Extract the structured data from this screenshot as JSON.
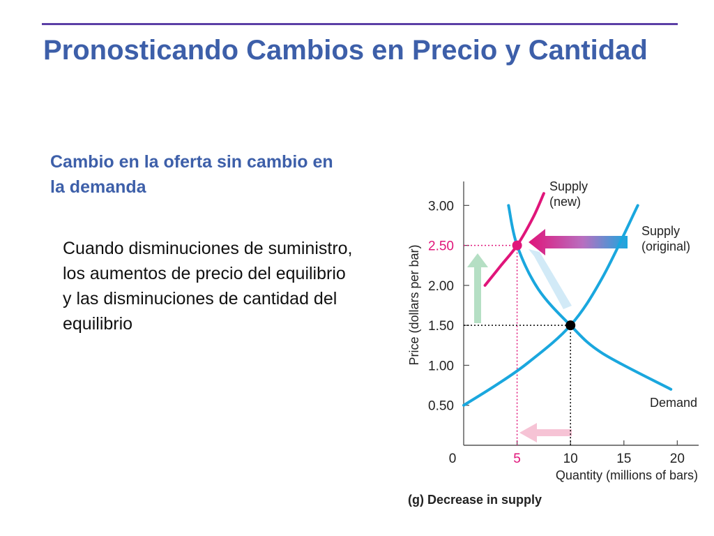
{
  "slide": {
    "title": "Pronosticando Cambios en Precio y Cantidad",
    "subtitle": "Cambio en la oferta sin cambio en la demanda",
    "body": "Cuando disminuciones de suministro, los aumentos de precio del equilibrio y las disminuciones de cantidad del equilibrio"
  },
  "chart_data": {
    "type": "line",
    "title": "",
    "caption": "(g) Decrease in supply",
    "xlabel": "Quantity (millions of bars)",
    "ylabel": "Price (dollars per bar)",
    "xlim": [
      0,
      22
    ],
    "ylim": [
      0,
      3.3
    ],
    "x_ticks": [
      "0",
      "5",
      "10",
      "15",
      "20"
    ],
    "x_tick_values": [
      0,
      5,
      10,
      15,
      20
    ],
    "y_ticks": [
      "0.50",
      "1.00",
      "1.50",
      "2.00",
      "2.50",
      "3.00"
    ],
    "y_tick_values": [
      0.5,
      1.0,
      1.5,
      2.0,
      2.5,
      3.0
    ],
    "grid": false,
    "series": [
      {
        "name": "Demand",
        "label_lines": [
          "Demand"
        ],
        "color": "#1aa7de",
        "x": [
          4.2,
          5,
          7,
          10,
          13,
          19.4
        ],
        "y": [
          3.0,
          2.5,
          1.95,
          1.5,
          1.15,
          0.7
        ]
      },
      {
        "name": "Supply (original)",
        "label_lines": [
          "Supply",
          "(original)"
        ],
        "color": "#1aa7de",
        "x": [
          0,
          3,
          6,
          10,
          13,
          16.3
        ],
        "y": [
          0.5,
          0.75,
          1.03,
          1.5,
          2.1,
          3.0
        ]
      },
      {
        "name": "Supply (new)",
        "label_lines": [
          "Supply",
          "(new)"
        ],
        "color": "#e0157a",
        "x": [
          2,
          3.5,
          5,
          6.5,
          7.5
        ],
        "y": [
          2.0,
          2.25,
          2.5,
          2.85,
          3.15
        ]
      }
    ],
    "equilibria": [
      {
        "x": 10,
        "y": 1.5,
        "color": "#000000",
        "y_label": "1.50",
        "x_label": "10"
      },
      {
        "x": 5,
        "y": 2.5,
        "color": "#e0157a",
        "y_label": "2.50",
        "x_label": "5"
      }
    ],
    "colors": {
      "demand": "#1aa7de",
      "supply_new": "#e0157a",
      "axis": "#555555",
      "text": "#222222"
    }
  }
}
